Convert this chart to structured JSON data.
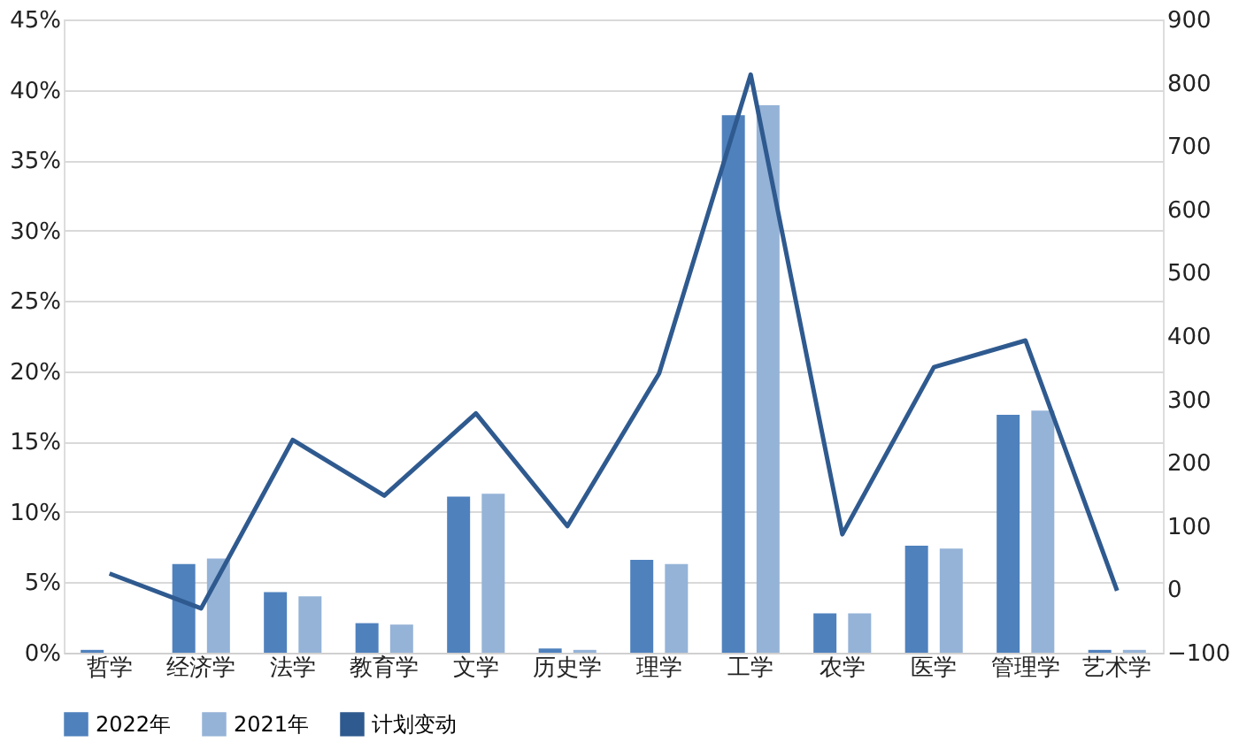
{
  "chart_data": {
    "type": "bar",
    "categories": [
      "哲学",
      "经济学",
      "法学",
      "教育学",
      "文学",
      "历史学",
      "理学",
      "工学",
      "农学",
      "医学",
      "管理学",
      "艺术学"
    ],
    "series": [
      {
        "name": "2022年",
        "color": "#4f81bd",
        "values": [
          0.2,
          6.3,
          4.3,
          2.1,
          11.1,
          0.3,
          6.6,
          38.2,
          2.8,
          7.6,
          16.9,
          0.2
        ]
      },
      {
        "name": "2021年",
        "color": "#95b3d7",
        "values": [
          null,
          6.7,
          4.0,
          2.0,
          11.3,
          0.2,
          6.3,
          38.9,
          2.8,
          7.4,
          17.2,
          0.2
        ]
      },
      {
        "name": "计划变动",
        "type": "line",
        "axis": "y2",
        "color": "#2f5a8f",
        "values": [
          25,
          -30,
          236,
          148,
          278,
          100,
          341,
          813,
          87,
          351,
          393,
          -2
        ]
      }
    ],
    "ylim": [
      0,
      45
    ],
    "yticks": [
      {
        "value": 0,
        "label": "0%"
      },
      {
        "value": 5,
        "label": "5%"
      },
      {
        "value": 10,
        "label": "10%"
      },
      {
        "value": 15,
        "label": "15%"
      },
      {
        "value": 20,
        "label": "20%"
      },
      {
        "value": 25,
        "label": "25%"
      },
      {
        "value": 30,
        "label": "30%"
      },
      {
        "value": 35,
        "label": "35%"
      },
      {
        "value": 40,
        "label": "40%"
      },
      {
        "value": 45,
        "label": "45%"
      }
    ],
    "y2lim": [
      -100,
      900
    ],
    "y2ticks": [
      -100,
      0,
      100,
      200,
      300,
      400,
      500,
      600,
      700,
      800,
      900
    ],
    "grid": "y",
    "legend": "bottom",
    "marker": "none",
    "line_style": "solid"
  }
}
